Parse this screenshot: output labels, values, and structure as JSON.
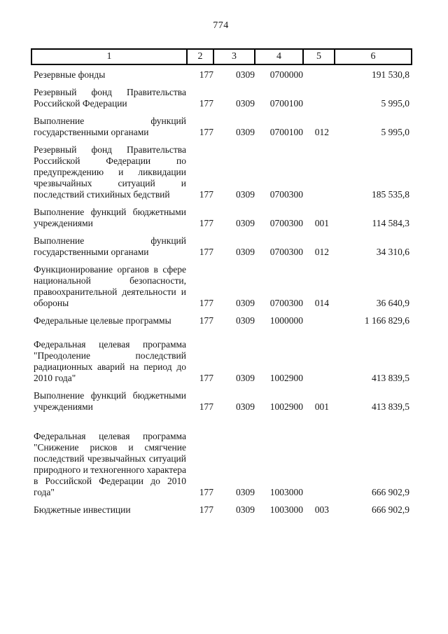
{
  "page_number": "774",
  "table": {
    "header": [
      "1",
      "2",
      "3",
      "4",
      "5",
      "6"
    ],
    "rows": [
      {
        "cells": [
          "Резервные фонды",
          "177",
          "0309",
          "0700000",
          "",
          "191 530,8"
        ]
      },
      {
        "cells": [
          "Резервный фонд Правительства Российской Федерации",
          "177",
          "0309",
          "0700100",
          "",
          "5 995,0"
        ]
      },
      {
        "cells": [
          "Выполнение функций государственными органами",
          "177",
          "0309",
          "0700100",
          "012",
          "5 995,0"
        ]
      },
      {
        "cells": [
          "Резервный фонд Правительства Российской Федерации по предупреждению и ликвидации чрезвычайных ситуаций и последствий стихийных бедствий",
          "177",
          "0309",
          "0700300",
          "",
          "185 535,8"
        ]
      },
      {
        "cells": [
          "Выполнение функций бюджетными учреждениями",
          "177",
          "0309",
          "0700300",
          "001",
          "114 584,3"
        ]
      },
      {
        "cells": [
          "Выполнение функций государственными органами",
          "177",
          "0309",
          "0700300",
          "012",
          "34 310,6"
        ]
      },
      {
        "cells": [
          "Функционирование органов в сфере национальной безопасности, правоохранительной деятельности и обороны",
          "177",
          "0309",
          "0700300",
          "014",
          "36 640,9"
        ]
      },
      {
        "cells": [
          "Федеральные целевые программы",
          "177",
          "0309",
          "1000000",
          "",
          "1 166 829,6"
        ]
      },
      {
        "cells": [
          "Федеральная целевая программа \"Преодоление последствий радиационных аварий на период до 2010 года\"",
          "177",
          "0309",
          "1002900",
          "",
          "413 839,5"
        ]
      },
      {
        "cells": [
          "Выполнение функций бюджетными учреждениями",
          "177",
          "0309",
          "1002900",
          "001",
          "413 839,5"
        ]
      },
      {
        "cells": [
          "Федеральная целевая программа \"Снижение рисков и смягчение последствий чрезвычайных ситуаций природного и техногенного характера в Российской Федерации до 2010 года\"",
          "177",
          "0309",
          "1003000",
          "",
          "666 902,9"
        ]
      },
      {
        "cells": [
          "Бюджетные инвестиции",
          "177",
          "0309",
          "1003000",
          "003",
          "666 902,9"
        ]
      }
    ]
  }
}
